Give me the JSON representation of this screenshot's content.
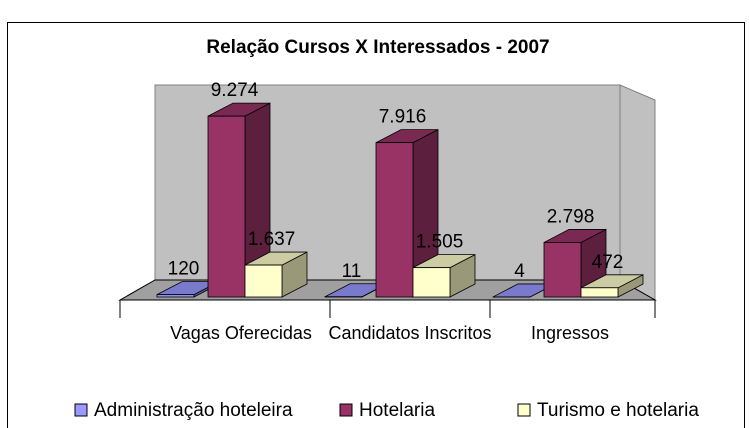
{
  "chart_data": {
    "type": "bar3d",
    "title": "Relação Cursos X Interessados - 2007",
    "categories": [
      "Vagas Oferecidas",
      "Candidatos Inscritos",
      "Ingressos"
    ],
    "ylim": [
      0,
      10000
    ],
    "series": [
      {
        "name": "Administração hoteleira",
        "color": "#9999ff",
        "values": [
          120,
          11,
          4
        ]
      },
      {
        "name": "Hotelaria",
        "color": "#993366",
        "values": [
          9274,
          7916,
          2798
        ],
        "value_labels": [
          "9.274",
          "7.916",
          "2.798"
        ]
      },
      {
        "name": "Turismo e hotelaria",
        "color": "#ffffcc",
        "values": [
          1637,
          1505,
          472
        ],
        "value_labels": [
          "1.637",
          "1.505",
          "472"
        ]
      }
    ],
    "legend": "bottom"
  }
}
